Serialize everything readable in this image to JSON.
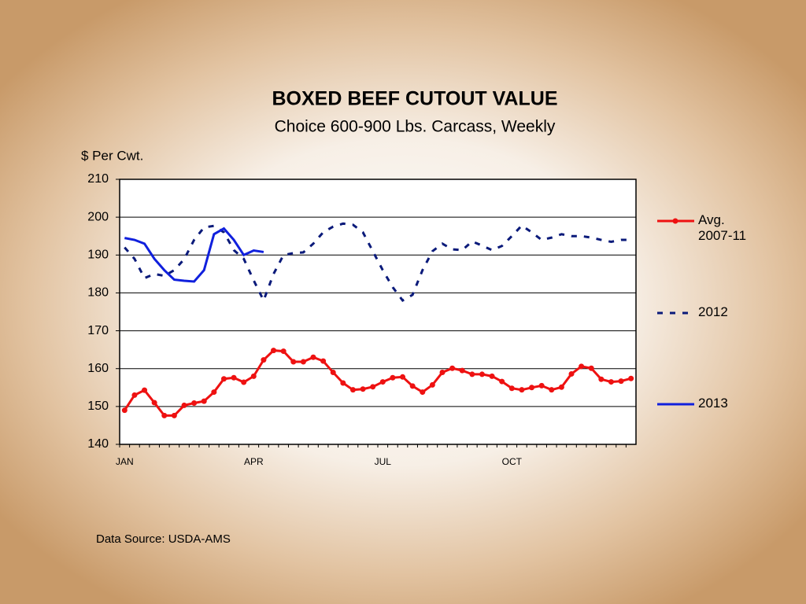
{
  "chart_data": {
    "type": "line",
    "title": "BOXED  BEEF  CUTOUT  VALUE",
    "subtitle": "Choice 600-900 Lbs. Carcass, Weekly",
    "y_label": "$ Per Cwt.",
    "source": "Data Source: USDA-AMS",
    "categories": [
      "JAN",
      null,
      null,
      null,
      null,
      null,
      null,
      null,
      null,
      null,
      null,
      null,
      null,
      "APR",
      null,
      null,
      null,
      null,
      null,
      null,
      null,
      null,
      null,
      null,
      null,
      null,
      "JUL",
      null,
      null,
      null,
      null,
      null,
      null,
      null,
      null,
      null,
      null,
      null,
      null,
      "OCT",
      null,
      null,
      null,
      null,
      null,
      null,
      null,
      null,
      null,
      null,
      null,
      null
    ],
    "ylim": [
      140,
      210
    ],
    "yticks": [
      140,
      150,
      160,
      170,
      180,
      190,
      200,
      210
    ],
    "grid": true,
    "series": [
      {
        "name": "Avg. 2007-11",
        "color": "#ee1111",
        "style": "solid",
        "marker": true,
        "values": [
          149,
          153,
          154.3,
          151,
          147.6,
          147.6,
          150.3,
          150.9,
          151.4,
          153.8,
          157.3,
          157.6,
          156.4,
          158,
          162.3,
          164.8,
          164.6,
          161.8,
          161.8,
          163,
          162,
          159,
          156.2,
          154.4,
          154.6,
          155.2,
          156.5,
          157.6,
          157.8,
          155.4,
          153.8,
          155.7,
          159,
          160.1,
          159.5,
          158.5,
          158.5,
          158,
          156.6,
          154.8,
          154.4,
          155,
          155.5,
          154.4,
          155.1,
          158.6,
          160.6,
          160.1,
          157.2,
          156.5,
          156.7,
          157.4
        ]
      },
      {
        "name": "2012",
        "color": "#0a1a7a",
        "style": "dashed",
        "marker": false,
        "values": [
          192,
          189,
          183.9,
          185,
          184.5,
          186,
          188.9,
          194,
          197.3,
          197.7,
          196,
          191.3,
          189,
          183.3,
          178,
          185,
          190,
          190.5,
          190.7,
          193,
          196,
          197.5,
          198.3,
          198,
          196,
          191,
          186,
          181.5,
          178,
          179.5,
          186,
          191,
          193,
          191.5,
          191.3,
          193.6,
          192.5,
          191.3,
          192.4,
          195,
          197.8,
          196,
          194,
          194.6,
          195.5,
          195,
          195,
          194.6,
          194,
          193.5,
          194,
          194
        ]
      },
      {
        "name": "2013",
        "color": "#1020dd",
        "style": "solid",
        "marker": false,
        "values": [
          194.5,
          194,
          193,
          189,
          186,
          183.5,
          183.2,
          183,
          186,
          195.5,
          197,
          194,
          190,
          191.2,
          190.8,
          null,
          null,
          null,
          null,
          null,
          null,
          null,
          null,
          null,
          null,
          null,
          null,
          null,
          null,
          null,
          null,
          null,
          null,
          null,
          null,
          null,
          null,
          null,
          null,
          null,
          null,
          null,
          null,
          null,
          null,
          null,
          null,
          null,
          null,
          null,
          null,
          null
        ]
      }
    ]
  }
}
